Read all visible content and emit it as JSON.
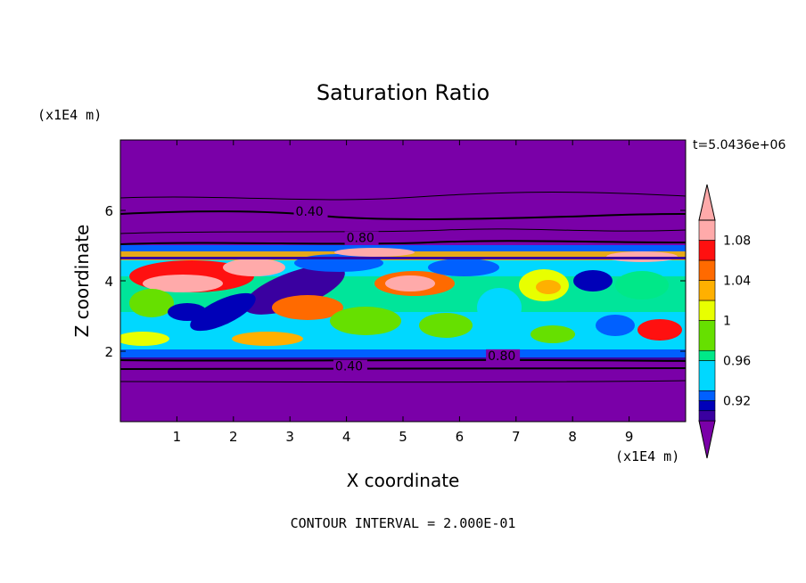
{
  "chart_data": {
    "type": "heatmap",
    "title": "Saturation Ratio",
    "xlabel": "X coordinate",
    "ylabel": "Z coordinate",
    "x_unit_label": "(x1E4 m)",
    "y_unit_label": "(x1E4 m)",
    "time_label": "t=5.0436e+06",
    "footer": "CONTOUR INTERVAL = 2.000E-01",
    "xlim": [
      0,
      10
    ],
    "ylim": [
      0,
      8
    ],
    "xticks": [
      "1",
      "2",
      "3",
      "4",
      "5",
      "6",
      "7",
      "8",
      "9"
    ],
    "yticks": [
      "2",
      "4",
      "6"
    ],
    "contour_labels": [
      {
        "text": "0.40",
        "x": 3.1,
        "z": 5.85
      },
      {
        "text": "0.80",
        "x": 4.0,
        "z": 5.1
      },
      {
        "text": "0.40",
        "x": 3.8,
        "z": 1.45
      },
      {
        "text": "0.80",
        "x": 6.5,
        "z": 1.75
      }
    ],
    "colorbar": {
      "tick_labels": [
        "1.08",
        "1.04",
        "1",
        "0.96",
        "0.92"
      ],
      "tick_values": [
        1.08,
        1.04,
        1.0,
        0.96,
        0.92
      ],
      "colors": [
        "#7a00a8",
        "#3a00a0",
        "#0000b8",
        "#0060ff",
        "#00d8ff",
        "#00e888",
        "#66e000",
        "#e8ff00",
        "#ffb000",
        "#ff6a00",
        "#ff1010",
        "#ffaaaa"
      ],
      "boundaries": [
        0.9,
        0.91,
        0.92,
        0.93,
        0.96,
        0.97,
        1.0,
        1.02,
        1.04,
        1.06,
        1.08,
        1.1
      ]
    }
  }
}
